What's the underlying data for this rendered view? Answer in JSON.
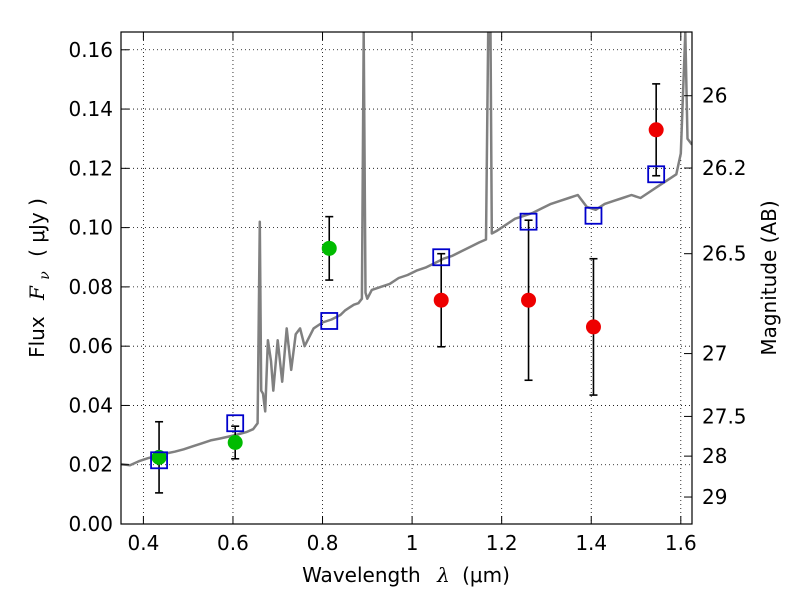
{
  "chart_data": {
    "type": "scatter",
    "xlabel": {
      "text": "Wavelength",
      "symbol": "λ",
      "unit": "(μm)"
    },
    "ylabel": {
      "text": "Flux",
      "symbol": "F",
      "subscript": "ν",
      "unit": "( μJy )"
    },
    "ylabel_right": "Magnitude (AB)",
    "xlim": [
      0.35,
      1.625
    ],
    "ylim": [
      0.0,
      0.166
    ],
    "grid": true,
    "x_ticks": [
      {
        "value": 0.4,
        "label": "0.4"
      },
      {
        "value": 0.6,
        "label": "0.6"
      },
      {
        "value": 0.8,
        "label": "0.8"
      },
      {
        "value": 1.0,
        "label": "1"
      },
      {
        "value": 1.2,
        "label": "1.2"
      },
      {
        "value": 1.4,
        "label": "1.4"
      },
      {
        "value": 1.6,
        "label": "1.6"
      }
    ],
    "y_ticks": [
      {
        "value": 0.0,
        "label": "0.00"
      },
      {
        "value": 0.02,
        "label": "0.02"
      },
      {
        "value": 0.04,
        "label": "0.04"
      },
      {
        "value": 0.06,
        "label": "0.06"
      },
      {
        "value": 0.08,
        "label": "0.08"
      },
      {
        "value": 0.1,
        "label": "0.10"
      },
      {
        "value": 0.12,
        "label": "0.12"
      },
      {
        "value": 0.14,
        "label": "0.14"
      },
      {
        "value": 0.16,
        "label": "0.16"
      }
    ],
    "right_ticks": [
      {
        "flux": 0.1445,
        "label": "26"
      },
      {
        "flux": 0.1201,
        "label": "26.2"
      },
      {
        "flux": 0.0912,
        "label": "26.5"
      },
      {
        "flux": 0.0575,
        "label": "27"
      },
      {
        "flux": 0.0363,
        "label": "27.5"
      },
      {
        "flux": 0.0229,
        "label": "28"
      },
      {
        "flux": 0.0091,
        "label": "29"
      }
    ],
    "model_spectrum": {
      "color": "#808080",
      "points": [
        [
          0.35,
          0.0202
        ],
        [
          0.37,
          0.0198
        ],
        [
          0.39,
          0.0212
        ],
        [
          0.41,
          0.0222
        ],
        [
          0.43,
          0.023
        ],
        [
          0.45,
          0.0238
        ],
        [
          0.47,
          0.0244
        ],
        [
          0.49,
          0.0252
        ],
        [
          0.51,
          0.0262
        ],
        [
          0.53,
          0.0272
        ],
        [
          0.55,
          0.0282
        ],
        [
          0.57,
          0.0288
        ],
        [
          0.59,
          0.0295
        ],
        [
          0.61,
          0.0302
        ],
        [
          0.63,
          0.031
        ],
        [
          0.645,
          0.032
        ],
        [
          0.655,
          0.034
        ],
        [
          0.66,
          0.102
        ],
        [
          0.663,
          0.045
        ],
        [
          0.667,
          0.044
        ],
        [
          0.672,
          0.038
        ],
        [
          0.678,
          0.062
        ],
        [
          0.685,
          0.055
        ],
        [
          0.69,
          0.045
        ],
        [
          0.7,
          0.062
        ],
        [
          0.71,
          0.048
        ],
        [
          0.72,
          0.066
        ],
        [
          0.73,
          0.052
        ],
        [
          0.74,
          0.064
        ],
        [
          0.75,
          0.066
        ],
        [
          0.76,
          0.06
        ],
        [
          0.78,
          0.066
        ],
        [
          0.8,
          0.068
        ],
        [
          0.82,
          0.069
        ],
        [
          0.84,
          0.0705
        ],
        [
          0.85,
          0.072
        ],
        [
          0.86,
          0.073
        ],
        [
          0.87,
          0.074
        ],
        [
          0.88,
          0.0745
        ],
        [
          0.888,
          0.076
        ],
        [
          0.892,
          0.166
        ],
        [
          0.896,
          0.078
        ],
        [
          0.9,
          0.076
        ],
        [
          0.91,
          0.079
        ],
        [
          0.93,
          0.08
        ],
        [
          0.95,
          0.081
        ],
        [
          0.97,
          0.083
        ],
        [
          0.99,
          0.084
        ],
        [
          1.01,
          0.0855
        ],
        [
          1.03,
          0.0865
        ],
        [
          1.05,
          0.088
        ],
        [
          1.07,
          0.0895
        ],
        [
          1.09,
          0.0905
        ],
        [
          1.11,
          0.092
        ],
        [
          1.13,
          0.0935
        ],
        [
          1.15,
          0.095
        ],
        [
          1.165,
          0.096
        ],
        [
          1.17,
          0.166
        ],
        [
          1.175,
          0.166
        ],
        [
          1.178,
          0.098
        ],
        [
          1.19,
          0.099
        ],
        [
          1.21,
          0.101
        ],
        [
          1.23,
          0.103
        ],
        [
          1.25,
          0.104
        ],
        [
          1.27,
          0.105
        ],
        [
          1.29,
          0.1065
        ],
        [
          1.31,
          0.108
        ],
        [
          1.33,
          0.109
        ],
        [
          1.35,
          0.11
        ],
        [
          1.37,
          0.111
        ],
        [
          1.39,
          0.107
        ],
        [
          1.41,
          0.106
        ],
        [
          1.43,
          0.108
        ],
        [
          1.45,
          0.109
        ],
        [
          1.47,
          0.11
        ],
        [
          1.49,
          0.111
        ],
        [
          1.51,
          0.11
        ],
        [
          1.53,
          0.112
        ],
        [
          1.55,
          0.114
        ],
        [
          1.57,
          0.116
        ],
        [
          1.59,
          0.118
        ],
        [
          1.6,
          0.125
        ],
        [
          1.61,
          0.166
        ],
        [
          1.615,
          0.13
        ],
        [
          1.625,
          0.128
        ]
      ]
    },
    "series": [
      {
        "marker": "circle",
        "color": "#00bb00",
        "points": [
          {
            "x": 0.435,
            "y": 0.0225,
            "err": 0.012
          },
          {
            "x": 0.605,
            "y": 0.0275,
            "err": 0.0055
          },
          {
            "x": 0.815,
            "y": 0.093,
            "err": 0.0107
          }
        ]
      },
      {
        "marker": "circle",
        "color": "#ee0000",
        "points": [
          {
            "x": 1.065,
            "y": 0.0755,
            "err": 0.0157
          },
          {
            "x": 1.26,
            "y": 0.0755,
            "err": 0.027
          },
          {
            "x": 1.405,
            "y": 0.0665,
            "err": 0.023
          },
          {
            "x": 1.545,
            "y": 0.133,
            "err": 0.0155
          }
        ]
      },
      {
        "marker": "square",
        "color": "#0000cc",
        "points": [
          {
            "x": 0.435,
            "y": 0.0215
          },
          {
            "x": 0.605,
            "y": 0.034
          },
          {
            "x": 0.815,
            "y": 0.0685
          },
          {
            "x": 1.065,
            "y": 0.09
          },
          {
            "x": 1.26,
            "y": 0.102
          },
          {
            "x": 1.405,
            "y": 0.104
          },
          {
            "x": 1.545,
            "y": 0.118
          }
        ]
      }
    ]
  }
}
